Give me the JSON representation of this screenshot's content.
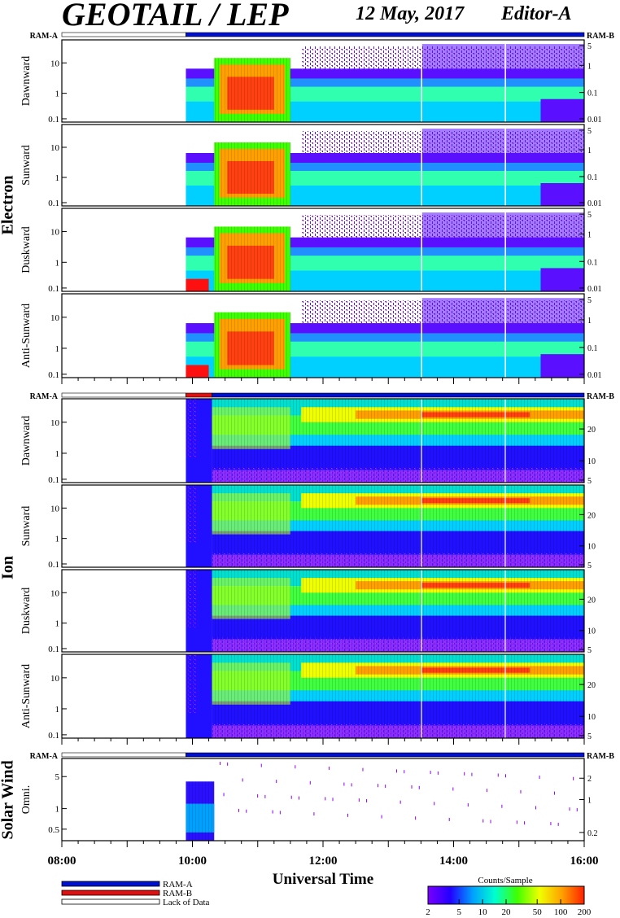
{
  "header": {
    "instrument": "GEOTAIL / LEP",
    "date": "12 May, 2017",
    "editor": "Editor-A"
  },
  "ram_labels": {
    "left": "RAM-A",
    "right": "RAM-B"
  },
  "sections": [
    {
      "name": "Electron",
      "panels": [
        "Dawnward",
        "Sunward",
        "Duskward",
        "Anti-Sunward"
      ]
    },
    {
      "name": "Ion",
      "panels": [
        "Dawnward",
        "Sunward",
        "Duskward",
        "Anti-Sunward"
      ]
    },
    {
      "name": "Solar Wind",
      "panels": [
        "Omni."
      ]
    }
  ],
  "colorbar": {
    "title": "Counts/Sample",
    "ticks": [
      "2",
      "5",
      "10",
      "20",
      "50",
      "100",
      "200"
    ],
    "colors": [
      "#7a00ff",
      "#2200ff",
      "#00a0ff",
      "#00ffd0",
      "#40ff00",
      "#f0ff00",
      "#ffa000",
      "#ff2000"
    ]
  },
  "legend": [
    {
      "label": "RAM-A",
      "color": "#0010d0"
    },
    {
      "label": "RAM-B",
      "color": "#e01010"
    },
    {
      "label": "Lack of Data",
      "color": "#ffffff"
    }
  ],
  "chart_data": [
    {
      "type": "heatmap",
      "title": "Electron",
      "xlabel": "Universal Time",
      "x_ticks": [
        "08:00",
        "10:00",
        "12:00",
        "14:00",
        "16:00"
      ],
      "x_range": [
        "08:00",
        "16:00"
      ],
      "ylabel_left_ticks": [
        "0.1",
        "1",
        "10"
      ],
      "ylabel_right_ticks": [
        "0.01",
        "0.1",
        "1",
        "5"
      ],
      "series": [
        {
          "name": "Dawnward"
        },
        {
          "name": "Sunward"
        },
        {
          "name": "Duskward"
        },
        {
          "name": "Anti-Sunward"
        }
      ],
      "ram_bar": [
        {
          "start": "08:00",
          "end": "09:54",
          "mode": "Lack of Data"
        },
        {
          "start": "09:54",
          "end": "16:00",
          "mode": "RAM-A"
        }
      ]
    },
    {
      "type": "heatmap",
      "title": "Ion",
      "x_ticks": [
        "08:00",
        "10:00",
        "12:00",
        "14:00",
        "16:00"
      ],
      "ylabel_left_ticks": [
        "0.1",
        "1",
        "10"
      ],
      "ylabel_right_ticks": [
        "5",
        "10",
        "20"
      ],
      "series": [
        {
          "name": "Dawnward"
        },
        {
          "name": "Sunward"
        },
        {
          "name": "Duskward"
        },
        {
          "name": "Anti-Sunward"
        }
      ],
      "ram_bar": [
        {
          "start": "08:00",
          "end": "09:54",
          "mode": "Lack of Data"
        },
        {
          "start": "09:54",
          "end": "10:18",
          "mode": "RAM-B"
        },
        {
          "start": "10:18",
          "end": "16:00",
          "mode": "RAM-A"
        }
      ]
    },
    {
      "type": "heatmap",
      "title": "Solar Wind",
      "x_ticks": [
        "08:00",
        "10:00",
        "12:00",
        "14:00",
        "16:00"
      ],
      "ylabel_left_ticks": [
        "0.5",
        "1",
        "5"
      ],
      "ylabel_right_ticks": [
        "0.2",
        "1",
        "2"
      ],
      "series": [
        {
          "name": "Omni."
        }
      ],
      "ram_bar": [
        {
          "start": "08:00",
          "end": "09:54",
          "mode": "Lack of Data"
        },
        {
          "start": "09:54",
          "end": "16:00",
          "mode": "RAM-A"
        }
      ]
    }
  ]
}
